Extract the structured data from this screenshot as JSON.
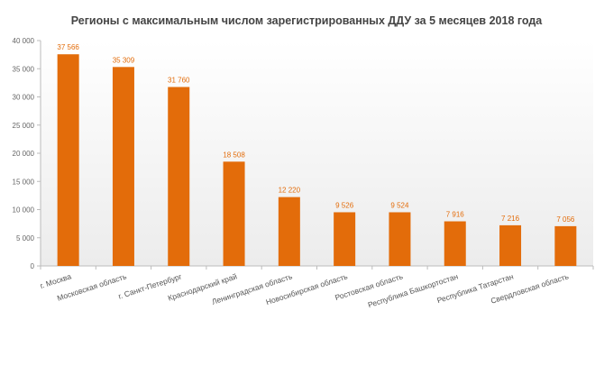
{
  "chart_data": {
    "type": "bar",
    "title": "Регионы с максимальным числом зарегистрированных ДДУ за 5 месяцев 2018 года",
    "xlabel": "",
    "ylabel": "",
    "ylim": [
      0,
      40000
    ],
    "yticks": [
      0,
      5000,
      10000,
      15000,
      20000,
      25000,
      30000,
      35000,
      40000
    ],
    "ytick_labels": [
      "0",
      "5 000",
      "10 000",
      "15 000",
      "20 000",
      "25 000",
      "30 000",
      "35 000",
      "40 000"
    ],
    "categories": [
      "г. Москва",
      "Московская область",
      "г. Санкт-Петербург",
      "Краснодарский край",
      "Ленинградская область",
      "Новосибирская область",
      "Ростовская область",
      "Республика Башкортостан",
      "Республика Татарстан",
      "Свердловская область"
    ],
    "values": [
      37566,
      35309,
      31760,
      18508,
      12220,
      9526,
      9524,
      7916,
      7216,
      7056
    ],
    "data_labels": [
      "37 566",
      "35 309",
      "31 760",
      "18 508",
      "12 220",
      "9 526",
      "9 524",
      "7 916",
      "7 216",
      "7 056"
    ],
    "bar_color": "#e36c0a",
    "grid": false
  }
}
